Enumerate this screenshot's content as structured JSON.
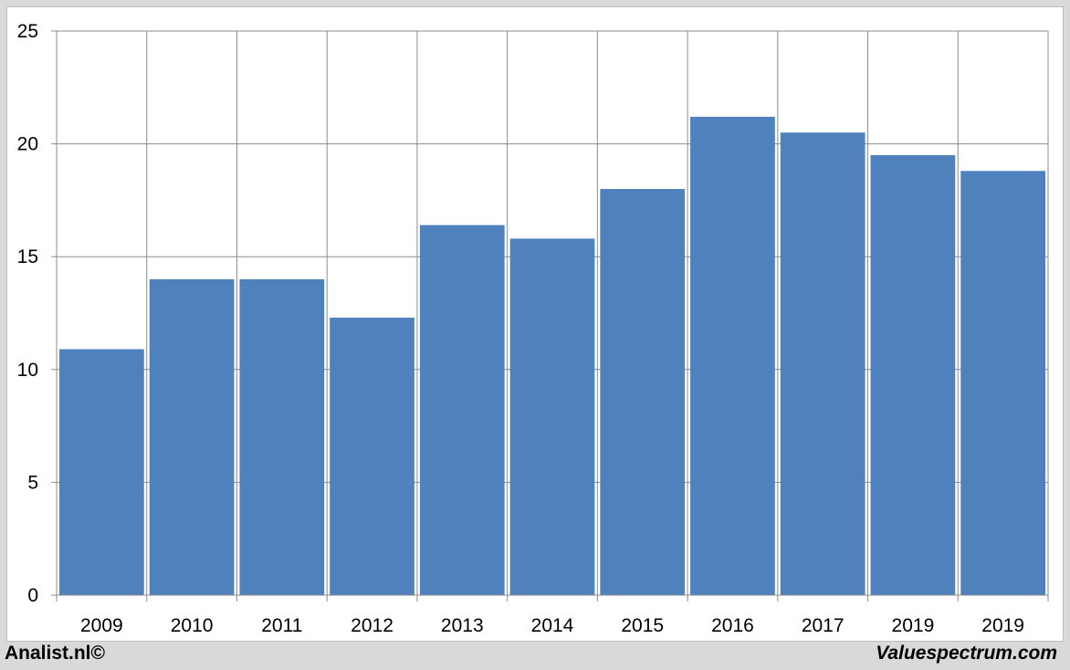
{
  "chart_data": {
    "type": "bar",
    "categories": [
      "2009",
      "2010",
      "2011",
      "2012",
      "2013",
      "2014",
      "2015",
      "2016",
      "2017",
      "2019",
      "2019"
    ],
    "values": [
      10.9,
      14.0,
      14.0,
      12.3,
      16.4,
      15.8,
      18.0,
      21.2,
      20.5,
      19.5,
      18.8
    ],
    "title": "",
    "xlabel": "",
    "ylabel": "",
    "ylim": [
      0,
      25
    ],
    "yticks": [
      "0",
      "5",
      "10",
      "15",
      "20",
      "25"
    ],
    "grid": true,
    "bar_color": "#4f81bd"
  },
  "footer": {
    "left": "Analist.nl©",
    "right": "Valuespectrum.com"
  }
}
